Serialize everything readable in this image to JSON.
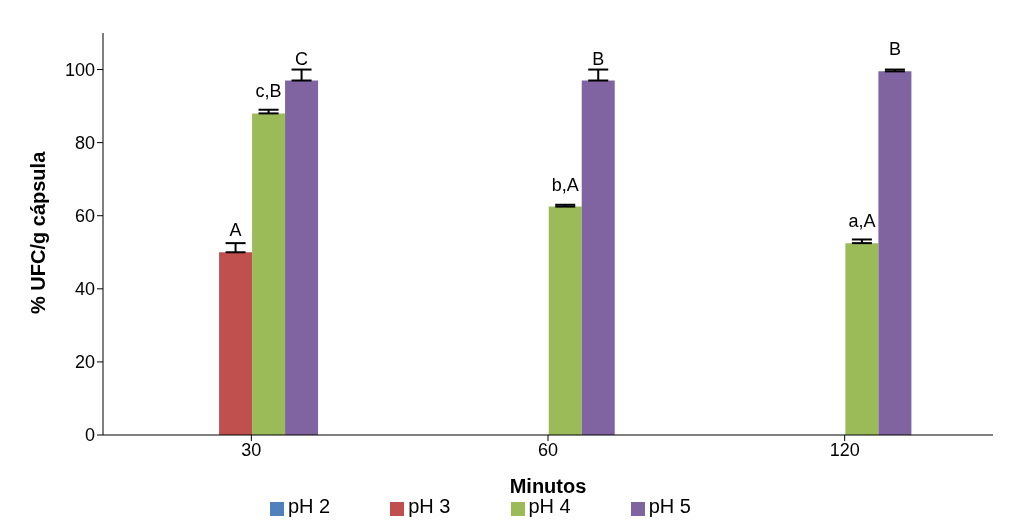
{
  "chart_data": {
    "type": "bar",
    "xlabel": "Minutos",
    "ylabel": "% UFC/g cápsula",
    "categories": [
      "30",
      "60",
      "120"
    ],
    "series": [
      {
        "name": "pH 2",
        "color": "#4f81bd",
        "values": [
          null,
          null,
          null
        ]
      },
      {
        "name": "pH 3",
        "color": "#c0504d",
        "values": [
          50,
          null,
          null
        ],
        "errors": [
          [
            50,
            52.5
          ],
          null,
          null
        ],
        "value_labels": [
          "A",
          null,
          null
        ]
      },
      {
        "name": "pH 4",
        "color": "#9bbb59",
        "values": [
          88,
          62.5,
          52.5
        ],
        "errors": [
          [
            88,
            89
          ],
          [
            62.5,
            63
          ],
          [
            52.5,
            53.5
          ]
        ],
        "value_labels": [
          "c,B",
          "b,A",
          "a,A"
        ]
      },
      {
        "name": "pH 5",
        "color": "#8064a2",
        "values": [
          97,
          97,
          99.5
        ],
        "errors": [
          [
            97,
            100
          ],
          [
            97,
            100
          ],
          [
            99.5,
            100
          ]
        ],
        "value_labels": [
          "C",
          "B",
          "B"
        ]
      }
    ],
    "ylim": [
      0,
      110
    ],
    "yticks": [
      0,
      20,
      40,
      60,
      80,
      100
    ],
    "grid": false,
    "legend": "bottom"
  }
}
